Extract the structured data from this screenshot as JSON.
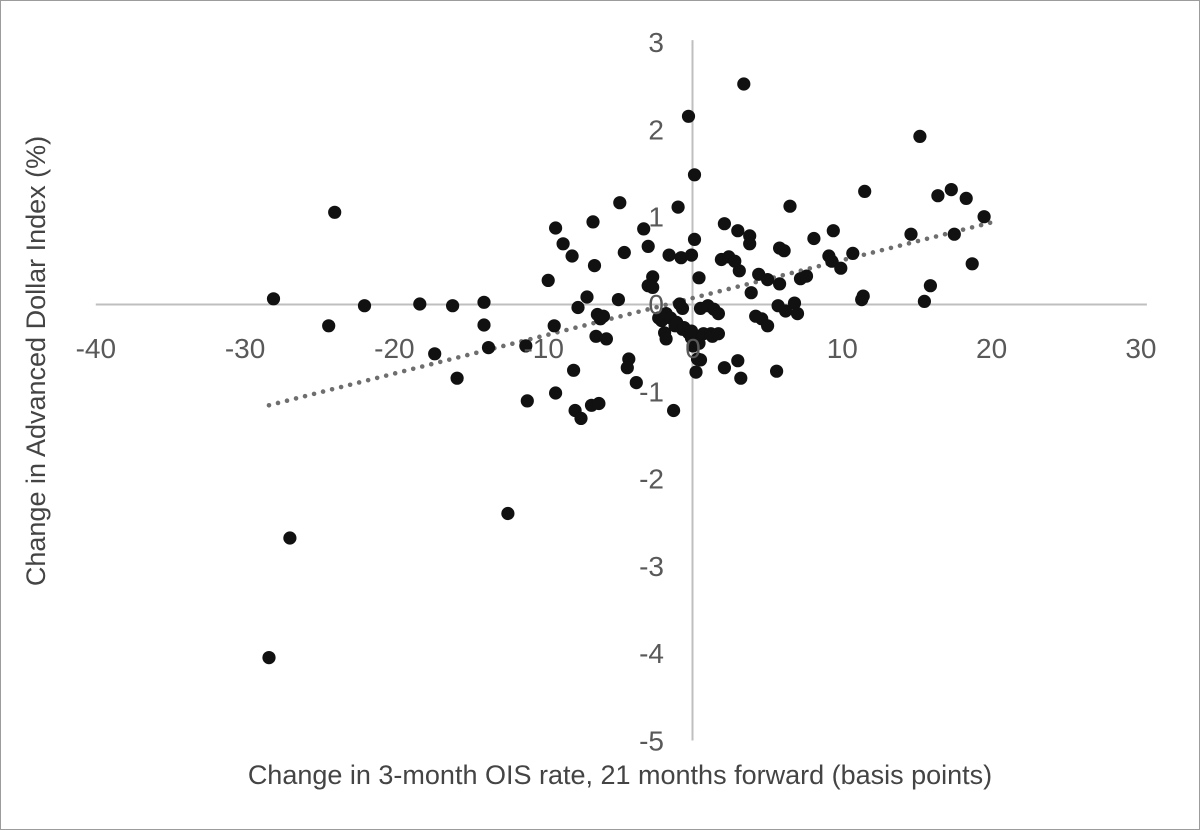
{
  "chart_data": {
    "type": "scatter",
    "title": "",
    "xlabel": "Change in 3-month OIS rate, 21 months forward (basis points)",
    "ylabel": "Change in Advanced  Dollar Index (%)",
    "xlim": [
      -40,
      30
    ],
    "ylim": [
      -5,
      3
    ],
    "x_ticks": [
      -40,
      -30,
      -20,
      -10,
      0,
      10,
      20,
      30
    ],
    "y_ticks": [
      3,
      2,
      1,
      0,
      -1,
      -2,
      -3,
      -4,
      -5
    ],
    "grid": false,
    "legend": "none",
    "point_color": "#111111",
    "axis_color": "#bfbfbf",
    "tick_label_color": "#595959",
    "trendline": {
      "style": "dotted",
      "color": "#6e6e6e",
      "x_start": -28.4,
      "y_start": -1.16,
      "x_end": 19.9,
      "y_end": 0.93
    },
    "points": [
      [
        -28.4,
        -4.05
      ],
      [
        -27,
        -2.68
      ],
      [
        -24.4,
        -0.25
      ],
      [
        -28.1,
        0.06
      ],
      [
        -24,
        1.05
      ],
      [
        -22,
        -0.02
      ],
      [
        -18.3,
        0
      ],
      [
        -17.3,
        -0.57
      ],
      [
        -16.1,
        -0.02
      ],
      [
        -15.8,
        -0.85
      ],
      [
        -14,
        0.02
      ],
      [
        -14,
        -0.24
      ],
      [
        -13.7,
        -0.5
      ],
      [
        -12.4,
        -2.4
      ],
      [
        -11.2,
        -0.48
      ],
      [
        -11.1,
        -1.11
      ],
      [
        -9.7,
        0.27
      ],
      [
        -9.2,
        0.87
      ],
      [
        -9.3,
        -0.25
      ],
      [
        -9.2,
        -1.02
      ],
      [
        -8.7,
        0.69
      ],
      [
        -8.1,
        0.55
      ],
      [
        -8,
        -0.76
      ],
      [
        -7.9,
        -1.22
      ],
      [
        -7.7,
        -0.04
      ],
      [
        -7.5,
        -1.31
      ],
      [
        -7.1,
        0.08
      ],
      [
        -6.8,
        -1.16
      ],
      [
        -6.7,
        0.94
      ],
      [
        -6.6,
        0.44
      ],
      [
        -6.5,
        -0.37
      ],
      [
        -6.3,
        -1.14
      ],
      [
        -6.4,
        -0.12
      ],
      [
        -6,
        -0.14
      ],
      [
        -5.8,
        -0.4
      ],
      [
        -6.2,
        -0.17
      ],
      [
        -5,
        0.05
      ],
      [
        -4.9,
        1.16
      ],
      [
        -4.6,
        0.59
      ],
      [
        -4.3,
        -0.63
      ],
      [
        -4.4,
        -0.73
      ],
      [
        -3.8,
        -0.9
      ],
      [
        -3.3,
        0.86
      ],
      [
        -3,
        0.66
      ],
      [
        -3,
        0.21
      ],
      [
        -2.7,
        0.31
      ],
      [
        -2.7,
        0.19
      ],
      [
        -2.3,
        -0.16
      ],
      [
        -2.1,
        -0.19
      ],
      [
        -1.9,
        -0.33
      ],
      [
        -1.8,
        -0.11
      ],
      [
        -1.8,
        -0.4
      ],
      [
        -1.6,
        0.56
      ],
      [
        -1.5,
        -0.16
      ],
      [
        -1.3,
        -1.22
      ],
      [
        -1.2,
        -0.25
      ],
      [
        -1.1,
        -0.21
      ],
      [
        -1,
        1.11
      ],
      [
        -0.9,
        0
      ],
      [
        -0.8,
        0.53
      ],
      [
        -0.7,
        -0.05
      ],
      [
        -0.7,
        -0.29
      ],
      [
        -0.6,
        -0.27
      ],
      [
        -0.3,
        2.15
      ],
      [
        -0.3,
        -0.33
      ],
      [
        -0.1,
        0.56
      ],
      [
        -0.1,
        -0.39
      ],
      [
        -0.1,
        -0.31
      ],
      [
        0,
        -0.48
      ],
      [
        0.1,
        1.48
      ],
      [
        0.1,
        0.74
      ],
      [
        0.2,
        -0.78
      ],
      [
        0.3,
        -0.63
      ],
      [
        0.4,
        0.3
      ],
      [
        0.4,
        -0.45
      ],
      [
        0.5,
        -0.05
      ],
      [
        0.5,
        -0.64
      ],
      [
        0.7,
        -0.34
      ],
      [
        1,
        -0.02
      ],
      [
        1.2,
        -0.34
      ],
      [
        1.3,
        -0.37
      ],
      [
        1.4,
        -0.06
      ],
      [
        1.7,
        -0.11
      ],
      [
        1.7,
        -0.34
      ],
      [
        1.9,
        0.51
      ],
      [
        2.1,
        0.92
      ],
      [
        2.1,
        -0.73
      ],
      [
        2.4,
        0.54
      ],
      [
        2.8,
        0.49
      ],
      [
        3,
        0.84
      ],
      [
        3,
        -0.65
      ],
      [
        3.1,
        0.38
      ],
      [
        3.2,
        -0.85
      ],
      [
        3.4,
        2.52
      ],
      [
        3.8,
        0.78
      ],
      [
        3.8,
        0.69
      ],
      [
        3.9,
        0.13
      ],
      [
        4.2,
        -0.14
      ],
      [
        4.4,
        0.34
      ],
      [
        4.6,
        -0.17
      ],
      [
        5,
        0.28
      ],
      [
        5,
        -0.25
      ],
      [
        5.6,
        -0.77
      ],
      [
        5.7,
        -0.02
      ],
      [
        5.8,
        0.64
      ],
      [
        5.8,
        0.23
      ],
      [
        6.1,
        0.61
      ],
      [
        6.2,
        -0.08
      ],
      [
        6.5,
        1.12
      ],
      [
        6.8,
        0.01
      ],
      [
        7,
        -0.11
      ],
      [
        7.2,
        0.29
      ],
      [
        7.6,
        0.32
      ],
      [
        8.1,
        0.75
      ],
      [
        9.1,
        0.55
      ],
      [
        9.3,
        0.49
      ],
      [
        9.4,
        0.84
      ],
      [
        9.9,
        0.41
      ],
      [
        10.7,
        0.58
      ],
      [
        11.3,
        0.05
      ],
      [
        11.4,
        0.09
      ],
      [
        11.5,
        1.29
      ],
      [
        14.6,
        0.8
      ],
      [
        15.2,
        1.92
      ],
      [
        15.5,
        0.03
      ],
      [
        15.9,
        0.21
      ],
      [
        16.4,
        1.24
      ],
      [
        17.3,
        1.31
      ],
      [
        17.5,
        0.8
      ],
      [
        18.3,
        1.21
      ],
      [
        18.7,
        0.46
      ],
      [
        19.5,
        1
      ]
    ]
  }
}
